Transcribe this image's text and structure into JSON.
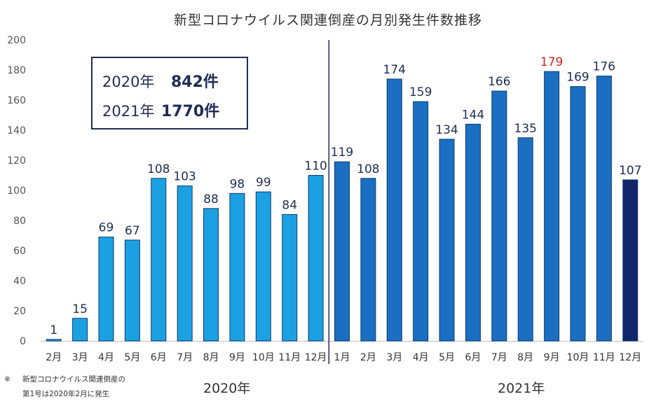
{
  "chart_data": {
    "type": "bar",
    "title": "新型コロナウイルス関連倒産の月別発生件数推移",
    "categories": [
      "2月",
      "3月",
      "4月",
      "5月",
      "6月",
      "7月",
      "8月",
      "9月",
      "10月",
      "11月",
      "12月",
      "1月",
      "2月",
      "3月",
      "4月",
      "5月",
      "6月",
      "7月",
      "8月",
      "9月",
      "10月",
      "11月",
      "12月"
    ],
    "values": [
      1,
      15,
      69,
      67,
      108,
      103,
      88,
      98,
      99,
      84,
      110,
      119,
      108,
      174,
      159,
      134,
      144,
      166,
      135,
      179,
      169,
      176,
      107
    ],
    "years": [
      "2020",
      "2020",
      "2020",
      "2020",
      "2020",
      "2020",
      "2020",
      "2020",
      "2020",
      "2020",
      "2020",
      "2021",
      "2021",
      "2021",
      "2021",
      "2021",
      "2021",
      "2021",
      "2021",
      "2021",
      "2021",
      "2021",
      "2021"
    ],
    "highlight_label_index": 19,
    "final_bar_index": 22,
    "ylim": [
      0,
      200
    ],
    "yticks": [
      0,
      20,
      40,
      60,
      80,
      100,
      120,
      140,
      160,
      180,
      200
    ],
    "xlabel": "",
    "ylabel": "",
    "colors": {
      "bar_2020": "#1ba1e2",
      "bar_2021": "#1b6fc2",
      "bar_final": "#10256b",
      "bar_edge": "#0b3a6e",
      "label": "#1f2d55",
      "label_highlight": "#e02020",
      "divider": "#1f2d55",
      "tick_text": "#555555"
    }
  },
  "summary": {
    "y2020": {
      "year": "2020年",
      "count": "842件"
    },
    "y2021": {
      "year": "2021年",
      "count": "1770件"
    }
  },
  "year_labels": {
    "y2020": "2020年",
    "y2021": "2021年"
  },
  "footnote": {
    "mark": "※",
    "line1": "新型コロナウイルス関連倒産の",
    "line2": "第1号は2020年2月に発生"
  }
}
